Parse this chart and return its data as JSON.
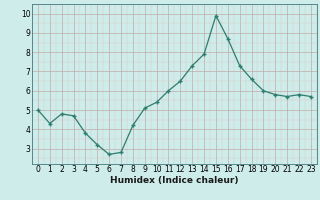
{
  "x": [
    0,
    1,
    2,
    3,
    4,
    5,
    6,
    7,
    8,
    9,
    10,
    11,
    12,
    13,
    14,
    15,
    16,
    17,
    18,
    19,
    20,
    21,
    22,
    23
  ],
  "y": [
    5.0,
    4.3,
    4.8,
    4.7,
    3.8,
    3.2,
    2.7,
    2.8,
    4.2,
    5.1,
    5.4,
    6.0,
    6.5,
    7.3,
    7.9,
    9.9,
    8.7,
    7.3,
    6.6,
    6.0,
    5.8,
    5.7,
    5.8,
    5.7
  ],
  "xlabel": "Humidex (Indice chaleur)",
  "ylim": [
    2.2,
    10.5
  ],
  "xlim": [
    -0.5,
    23.5
  ],
  "line_color": "#2d7d6e",
  "marker": "+",
  "marker_size": 3,
  "bg_color": "#ceecea",
  "grid_major_color": "#c0aaaa",
  "grid_minor_color": "#d8c8c8",
  "yticks": [
    3,
    4,
    5,
    6,
    7,
    8,
    9,
    10
  ],
  "xtick_labels": [
    "0",
    "1",
    "2",
    "3",
    "4",
    "5",
    "6",
    "7",
    "8",
    "9",
    "10",
    "11",
    "12",
    "13",
    "14",
    "15",
    "16",
    "17",
    "18",
    "19",
    "20",
    "21",
    "22",
    "23"
  ],
  "xlabel_fontsize": 6.5,
  "tick_fontsize": 5.5
}
